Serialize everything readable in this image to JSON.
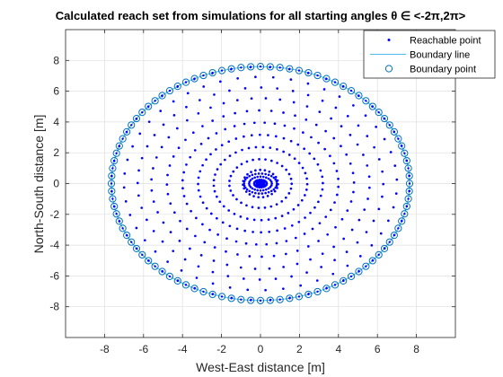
{
  "chart_data": {
    "type": "scatter",
    "title": "Calculated reach set from simulations for all starting angles θ ∈ <-2π,2π>",
    "xlabel": "West-East distance [m]",
    "ylabel": "North-South distance [m]",
    "xlim": [
      -10,
      10
    ],
    "ylim": [
      -10,
      10
    ],
    "xticks": [
      -8,
      -6,
      -4,
      -2,
      0,
      2,
      4,
      6,
      8
    ],
    "yticks": [
      -8,
      -6,
      -4,
      -2,
      0,
      2,
      4,
      6,
      8
    ],
    "grid": true,
    "legend_position": "top-right",
    "boundary_radius": {
      "x": 7.65,
      "y": 7.6
    },
    "boundary_point_count": 96,
    "reachable_rings": [
      0.9,
      1.6,
      2.4,
      3.2,
      4.0,
      4.8,
      5.6,
      6.3,
      7.0,
      7.65
    ],
    "series": [
      {
        "name": "Reachable point",
        "marker": "dot",
        "color": "#0000ff"
      },
      {
        "name": "Boundary line",
        "marker": "line",
        "color": "#4dbeee"
      },
      {
        "name": "Boundary point",
        "marker": "circle",
        "color": "#0072bd"
      }
    ]
  }
}
